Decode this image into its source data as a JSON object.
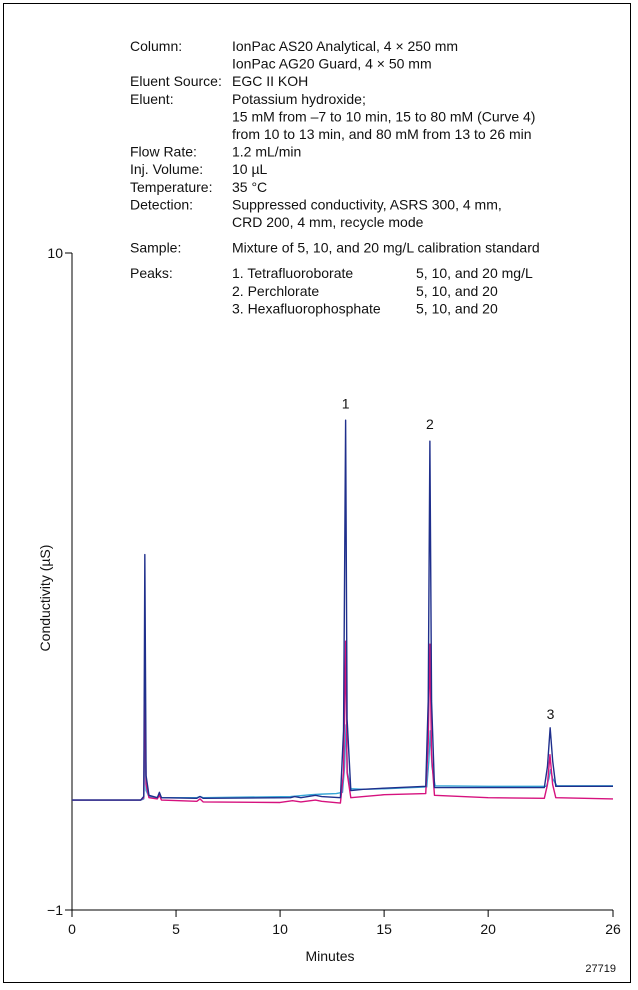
{
  "conditions": [
    {
      "label": "Column:",
      "lines": [
        "IonPac AS20  Analytical, 4 × 250 mm",
        "IonPac AG20 Guard, 4 × 50 mm"
      ]
    },
    {
      "label": "Eluent Source:",
      "lines": [
        "EGC II KOH"
      ]
    },
    {
      "label": "Eluent:",
      "lines": [
        "Potassium hydroxide;",
        "15 mM from –7 to 10 min, 15 to 80 mM (Curve 4)",
        " from 10 to 13 min, and 80 mM from 13 to 26 min"
      ]
    },
    {
      "label": "Flow Rate:",
      "lines": [
        "1.2 mL/min"
      ]
    },
    {
      "label": "Inj. Volume:",
      "lines": [
        "10 µL"
      ]
    },
    {
      "label": "Temperature:",
      "lines": [
        "35 °C"
      ]
    },
    {
      "label": "Detection:",
      "lines": [
        "Suppressed conductivity,  ASRS 300, 4 mm,",
        "CRD 200, 4 mm, recycle mode"
      ]
    },
    {
      "label": "Sample:",
      "lines": [
        "Mixture of 5, 10, and 20 mg/L calibration standard"
      ]
    }
  ],
  "peaks_table": {
    "label": "Peaks:",
    "rows": [
      {
        "name": "1. Tetrafluoroborate",
        "conc": "5, 10, and 20 mg/L"
      },
      {
        "name": "2. Perchlorate",
        "conc": "5, 10, and 20"
      },
      {
        "name": "3. Hexafluorophosphate",
        "conc": "5, 10, and 20"
      }
    ]
  },
  "figure_id": "27719",
  "colors": {
    "series_20": "#1f2f8c",
    "series_10": "#d6127e",
    "series_5": "#38a6d6"
  },
  "chart_data": {
    "type": "line",
    "xlabel": "Minutes",
    "ylabel": "Conductivity (µS)",
    "xlim": [
      0,
      26
    ],
    "ylim": [
      -1,
      10
    ],
    "xticks": [
      0,
      5,
      10,
      15,
      20,
      26
    ],
    "yticks": [
      -1,
      10
    ],
    "grid": false,
    "legend": "none",
    "peak_labels": [
      {
        "text": "1",
        "x": 13.15,
        "y": 7.35
      },
      {
        "text": "2",
        "x": 17.2,
        "y": 7.0
      },
      {
        "text": "3",
        "x": 23.0,
        "y": 2.15
      }
    ],
    "series": [
      {
        "color": "#38a6d6",
        "points": [
          [
            0,
            0.84
          ],
          [
            3.3,
            0.84
          ],
          [
            3.45,
            0.86
          ],
          [
            3.5,
            2.1
          ],
          [
            3.56,
            1.0
          ],
          [
            3.7,
            0.9
          ],
          [
            4.1,
            0.88
          ],
          [
            4.2,
            0.93
          ],
          [
            4.3,
            0.88
          ],
          [
            6.0,
            0.88
          ],
          [
            6.15,
            0.9
          ],
          [
            6.3,
            0.88
          ],
          [
            10.5,
            0.9
          ],
          [
            11.5,
            0.93
          ],
          [
            12.0,
            0.94
          ],
          [
            12.7,
            0.95
          ],
          [
            13.0,
            0.97
          ],
          [
            13.1,
            1.4
          ],
          [
            13.17,
            2.1
          ],
          [
            13.24,
            1.3
          ],
          [
            13.4,
            1.03
          ],
          [
            14.0,
            1.02
          ],
          [
            15.0,
            1.03
          ],
          [
            17.05,
            1.06
          ],
          [
            17.15,
            1.5
          ],
          [
            17.22,
            2.0
          ],
          [
            17.3,
            1.4
          ],
          [
            17.45,
            1.08
          ],
          [
            20.0,
            1.07
          ],
          [
            22.8,
            1.07
          ],
          [
            22.92,
            1.2
          ],
          [
            23.0,
            1.35
          ],
          [
            23.1,
            1.2
          ],
          [
            23.3,
            1.08
          ],
          [
            26,
            1.08
          ]
        ]
      },
      {
        "color": "#d6127e",
        "points": [
          [
            0,
            0.84
          ],
          [
            3.3,
            0.84
          ],
          [
            3.45,
            0.88
          ],
          [
            3.5,
            2.95
          ],
          [
            3.56,
            1.1
          ],
          [
            3.7,
            0.88
          ],
          [
            4.1,
            0.86
          ],
          [
            4.2,
            0.92
          ],
          [
            4.3,
            0.84
          ],
          [
            6.0,
            0.82
          ],
          [
            6.15,
            0.86
          ],
          [
            6.3,
            0.81
          ],
          [
            10.0,
            0.8
          ],
          [
            10.6,
            0.83
          ],
          [
            11.0,
            0.81
          ],
          [
            11.7,
            0.84
          ],
          [
            12.0,
            0.82
          ],
          [
            12.9,
            0.79
          ],
          [
            13.05,
            1.3
          ],
          [
            13.15,
            3.5
          ],
          [
            13.22,
            1.3
          ],
          [
            13.4,
            0.88
          ],
          [
            14.0,
            0.9
          ],
          [
            15.0,
            0.93
          ],
          [
            17.0,
            0.95
          ],
          [
            17.12,
            1.8
          ],
          [
            17.2,
            3.45
          ],
          [
            17.28,
            1.6
          ],
          [
            17.42,
            0.92
          ],
          [
            20.0,
            0.88
          ],
          [
            22.7,
            0.87
          ],
          [
            22.85,
            1.1
          ],
          [
            22.97,
            1.6
          ],
          [
            23.1,
            1.1
          ],
          [
            23.25,
            0.88
          ],
          [
            26,
            0.86
          ]
        ]
      },
      {
        "color": "#1f2f8c",
        "points": [
          [
            0,
            0.84
          ],
          [
            3.3,
            0.84
          ],
          [
            3.45,
            0.9
          ],
          [
            3.5,
            4.95
          ],
          [
            3.56,
            1.25
          ],
          [
            3.7,
            0.92
          ],
          [
            4.1,
            0.88
          ],
          [
            4.2,
            0.97
          ],
          [
            4.3,
            0.88
          ],
          [
            6.0,
            0.87
          ],
          [
            6.15,
            0.9
          ],
          [
            6.3,
            0.87
          ],
          [
            10.5,
            0.88
          ],
          [
            10.7,
            0.9
          ],
          [
            11.0,
            0.88
          ],
          [
            11.7,
            0.92
          ],
          [
            12.0,
            0.9
          ],
          [
            12.9,
            0.88
          ],
          [
            13.05,
            2.0
          ],
          [
            13.15,
            7.2
          ],
          [
            13.22,
            2.2
          ],
          [
            13.4,
            1.0
          ],
          [
            14.0,
            1.02
          ],
          [
            15.0,
            1.04
          ],
          [
            17.0,
            1.07
          ],
          [
            17.12,
            2.5
          ],
          [
            17.2,
            6.85
          ],
          [
            17.28,
            2.5
          ],
          [
            17.42,
            1.05
          ],
          [
            20.0,
            1.05
          ],
          [
            22.7,
            1.05
          ],
          [
            22.85,
            1.4
          ],
          [
            22.98,
            2.05
          ],
          [
            23.1,
            1.5
          ],
          [
            23.25,
            1.07
          ],
          [
            26,
            1.07
          ]
        ]
      }
    ]
  }
}
